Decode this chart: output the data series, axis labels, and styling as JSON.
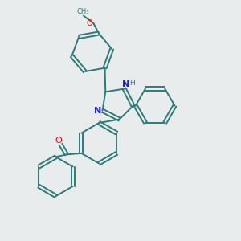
{
  "bg_color": "#e8ecec",
  "bond_color": "#2d7a7a",
  "N_color": "#1a1aff",
  "O_color": "#ff0000",
  "lw": 1.4,
  "figsize": [
    3.0,
    3.0
  ],
  "dpi": 100,
  "xlim": [
    0,
    10
  ],
  "ylim": [
    0,
    10
  ]
}
